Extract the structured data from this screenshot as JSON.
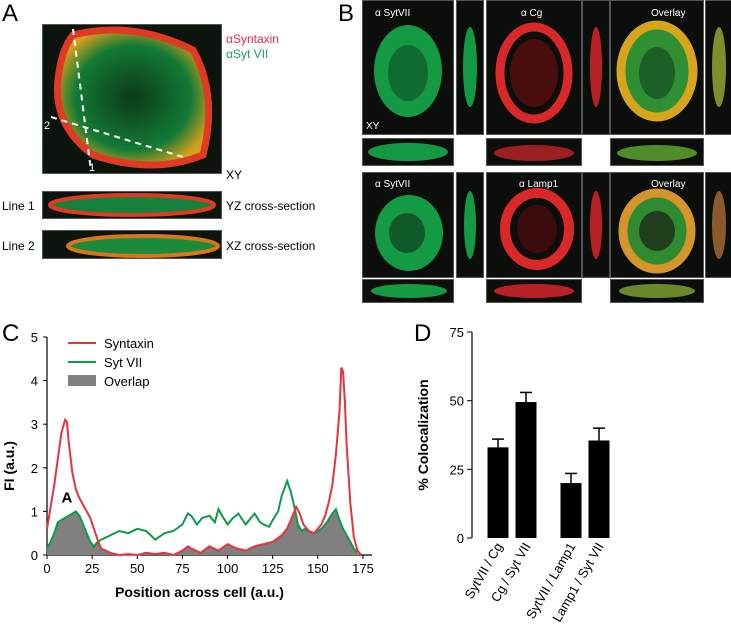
{
  "panels": {
    "A": {
      "letter": "A",
      "legend_syntaxin": "αSyntaxin",
      "legend_sytvii": "αSyt VII",
      "marker_1": "1",
      "marker_2": "2",
      "xy_label": "XY",
      "row1_label": "Line 1",
      "row1_desc": "YZ cross-section",
      "row2_label": "Line 2",
      "row2_desc": "XZ cross-section"
    },
    "B": {
      "letter": "B",
      "row1": [
        "α SytVII",
        "α Cg",
        "Overlay"
      ],
      "row2": [
        "α SytVII",
        "α Lamp1",
        "Overlay"
      ],
      "xy_label": "XY"
    },
    "C": {
      "letter": "C"
    },
    "D": {
      "letter": "D"
    }
  },
  "chart_data": [
    {
      "panel": "C",
      "type": "line",
      "xlabel": "Position across cell (a.u.)",
      "ylabel": "FI (a.u.)",
      "xlim": [
        0,
        180
      ],
      "ylim": [
        0,
        5
      ],
      "xticks": [
        0,
        25,
        50,
        75,
        100,
        125,
        150,
        175
      ],
      "yticks": [
        0,
        1,
        2,
        3,
        4,
        5
      ],
      "annotation": "A",
      "legend": [
        "Syntaxin",
        "Syt VII",
        "Overlap"
      ],
      "colors": {
        "syntaxin": "#e8323c",
        "sytvii": "#0f9a4a",
        "overlap": "#808080"
      },
      "series": [
        {
          "name": "Syntaxin",
          "x": [
            0,
            2,
            4,
            6,
            8,
            10,
            11,
            12,
            14,
            16,
            18,
            20,
            22,
            24,
            26,
            28,
            30,
            35,
            40,
            45,
            50,
            55,
            60,
            65,
            70,
            75,
            78,
            80,
            85,
            90,
            95,
            100,
            105,
            110,
            115,
            120,
            125,
            130,
            133,
            135,
            138,
            140,
            142,
            145,
            148,
            150,
            152,
            154,
            156,
            158,
            160,
            162,
            163,
            164,
            165,
            166,
            168,
            170,
            172,
            174
          ],
          "values": [
            0.6,
            1.1,
            1.6,
            2.2,
            2.8,
            3.1,
            3.05,
            2.6,
            1.9,
            1.5,
            1.3,
            1.15,
            1.0,
            0.85,
            0.6,
            0.35,
            0.15,
            0.05,
            0.0,
            0.02,
            0.0,
            0.05,
            0.02,
            0.05,
            0.0,
            0.1,
            0.2,
            0.15,
            0.05,
            0.2,
            0.1,
            0.25,
            0.15,
            0.1,
            0.2,
            0.25,
            0.3,
            0.45,
            0.6,
            0.8,
            1.1,
            0.95,
            0.7,
            0.55,
            0.5,
            0.6,
            0.7,
            0.9,
            1.2,
            1.6,
            2.3,
            3.3,
            4.3,
            4.2,
            3.5,
            2.5,
            1.2,
            0.4,
            0.1,
            0.0
          ]
        },
        {
          "name": "Syt VII",
          "x": [
            0,
            2,
            4,
            6,
            8,
            10,
            12,
            14,
            16,
            18,
            20,
            22,
            24,
            26,
            28,
            30,
            35,
            40,
            45,
            50,
            55,
            60,
            65,
            70,
            75,
            78,
            80,
            83,
            86,
            90,
            93,
            95,
            97,
            100,
            103,
            106,
            110,
            113,
            115,
            118,
            120,
            123,
            125,
            128,
            130,
            133,
            135,
            137,
            139,
            141,
            143,
            145,
            148,
            150,
            152,
            155,
            158,
            160,
            162,
            164,
            166,
            168,
            170,
            172
          ],
          "values": [
            0.15,
            0.3,
            0.5,
            0.75,
            0.8,
            0.85,
            0.9,
            0.95,
            1.0,
            0.9,
            0.7,
            0.5,
            0.3,
            0.2,
            0.3,
            0.35,
            0.45,
            0.55,
            0.5,
            0.6,
            0.55,
            0.35,
            0.5,
            0.55,
            0.7,
            0.95,
            0.9,
            0.7,
            0.85,
            0.9,
            0.75,
            1.05,
            0.9,
            0.7,
            0.85,
            0.95,
            0.7,
            0.85,
            0.95,
            0.75,
            0.7,
            0.65,
            0.8,
            1.0,
            1.35,
            1.7,
            1.45,
            1.1,
            0.7,
            0.55,
            0.6,
            0.55,
            0.5,
            0.55,
            0.6,
            0.75,
            0.95,
            1.05,
            0.8,
            0.6,
            0.45,
            0.3,
            0.15,
            0.05
          ]
        }
      ]
    },
    {
      "panel": "D",
      "type": "bar",
      "ylabel": "% Colocalization",
      "ylim": [
        0,
        75
      ],
      "yticks": [
        0,
        25,
        50,
        75
      ],
      "categories": [
        "SytVII / Cg",
        "Cg / Syt VII",
        "SytVII / Lamp1",
        "Lamp1 / Syt VII"
      ],
      "values": [
        33,
        49.5,
        20,
        35.5
      ],
      "errors": [
        3,
        3.5,
        3.5,
        4.5
      ],
      "bar_color": "#000000"
    }
  ]
}
